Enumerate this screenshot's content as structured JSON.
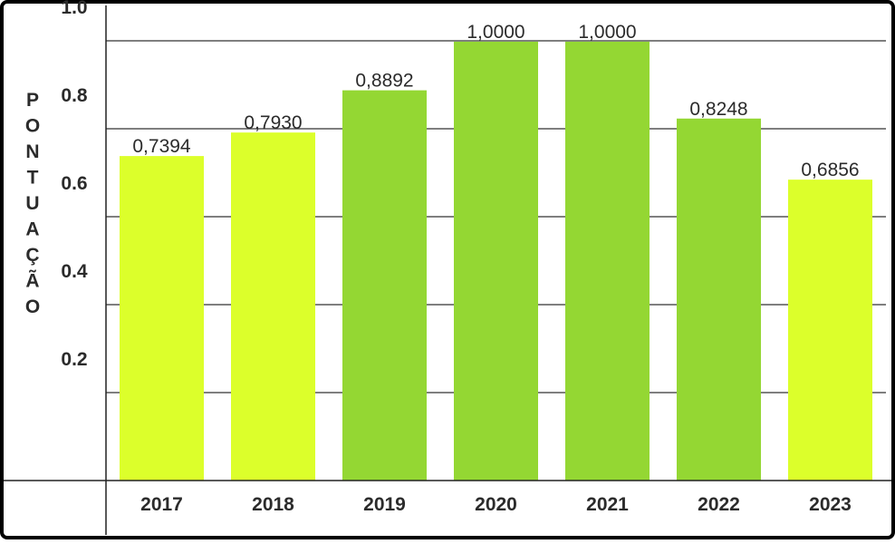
{
  "chart_data": {
    "type": "bar",
    "title": "",
    "xlabel": "",
    "ylabel": "PONTUAÇÃO",
    "categories": [
      "2017",
      "2018",
      "2019",
      "2020",
      "2021",
      "2022",
      "2023"
    ],
    "values": [
      0.7394,
      0.793,
      0.8892,
      1.0,
      1.0,
      0.8248,
      0.6856
    ],
    "value_labels": [
      "0,7394",
      "0,7930",
      "0,8892",
      "1,0000",
      "1,0000",
      "0,8248",
      "0,6856"
    ],
    "ylim": [
      0,
      1.0
    ],
    "yticks": [
      0.2,
      0.4,
      0.6,
      0.8,
      1.0
    ],
    "ytick_labels": [
      "0.2",
      "0.4",
      "0.6",
      "0.8",
      "1.0"
    ],
    "grid": true,
    "legend": "none",
    "bar_colors": [
      "#dcff2b",
      "#dcff2b",
      "#94d733",
      "#94d733",
      "#94d733",
      "#94d733",
      "#dcff2b"
    ]
  }
}
